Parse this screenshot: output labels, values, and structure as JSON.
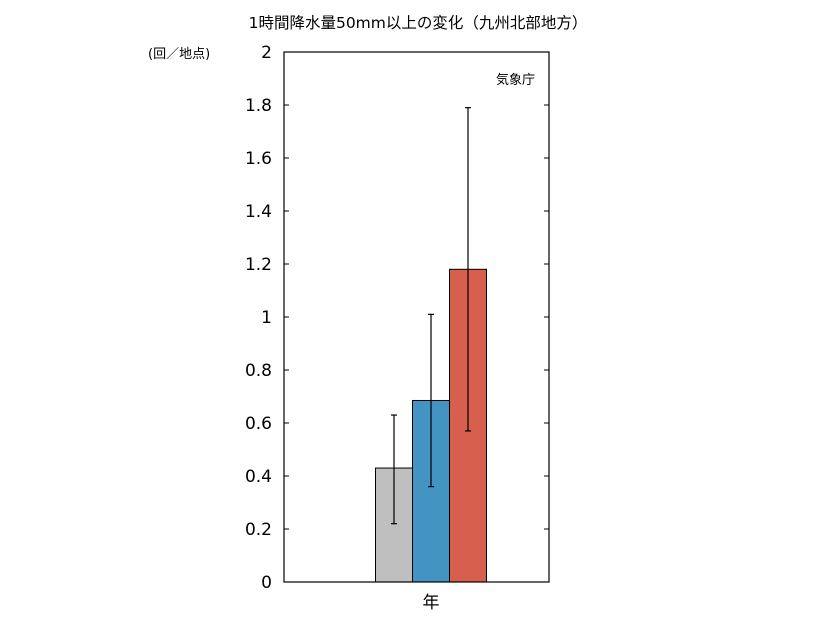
{
  "chart_data": {
    "type": "bar",
    "title": "1時間降水量50mm以上の変化（九州北部地方）",
    "ylabel": "(回／地点)",
    "xlabel": "年",
    "source_note": "気象庁",
    "ylim": [
      0,
      2
    ],
    "y_ticks": [
      0,
      0.2,
      0.4,
      0.6,
      0.8,
      1,
      1.2,
      1.4,
      1.6,
      1.8,
      2
    ],
    "y_tick_labels": [
      "0",
      "0.2",
      "0.4",
      "0.6",
      "0.8",
      "1",
      "1.2",
      "1.4",
      "1.6",
      "1.8",
      "2"
    ],
    "grid": false,
    "legend": "none",
    "series": [
      {
        "values": [
          0.43
        ],
        "error_low": [
          0.22
        ],
        "error_high": [
          0.63
        ],
        "color": "#bfbfbf"
      },
      {
        "values": [
          0.685
        ],
        "error_low": [
          0.36
        ],
        "error_high": [
          1.01
        ],
        "color": "#4393c3"
      },
      {
        "values": [
          1.18
        ],
        "error_low": [
          0.57
        ],
        "error_high": [
          1.79
        ],
        "color": "#d6604d"
      }
    ]
  }
}
